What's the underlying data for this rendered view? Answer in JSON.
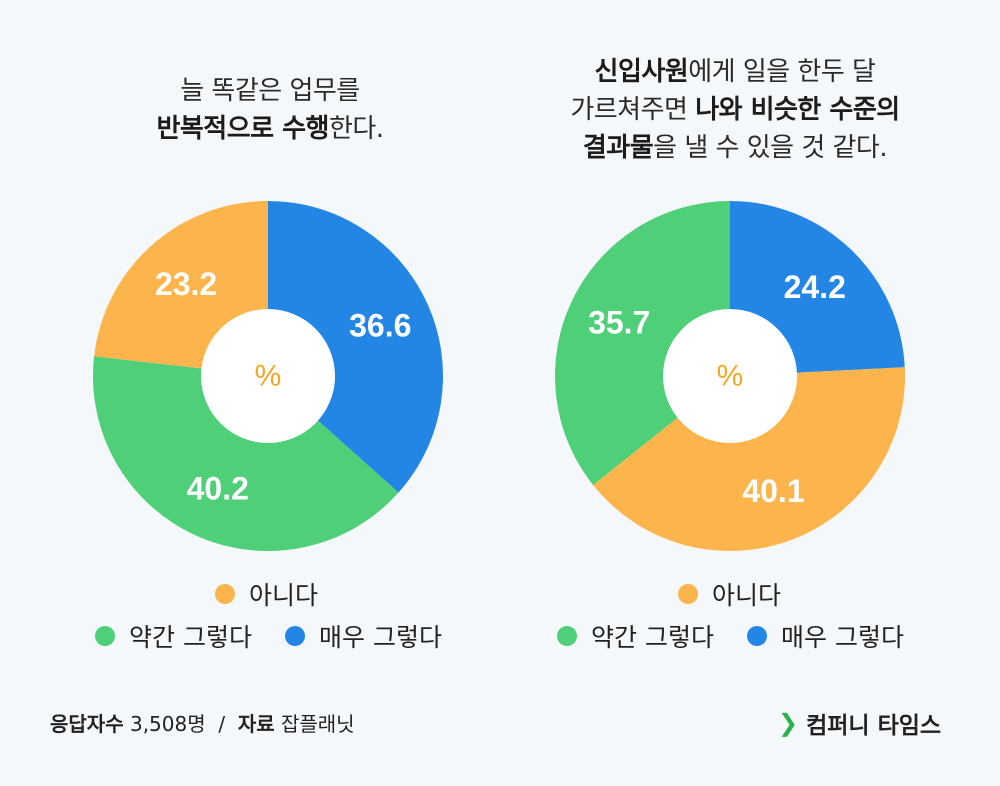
{
  "chart_data": [
    {
      "type": "donut",
      "title_parts": [
        {
          "text": "늘 똑같은 업무를",
          "bold": false,
          "break": true
        },
        {
          "text": "반복적으로 수행",
          "bold": true,
          "break": false
        },
        {
          "text": "한다.",
          "bold": false,
          "break": false
        }
      ],
      "center_label": "%",
      "slices": [
        {
          "name": "매우 그렇다",
          "value": 36.6,
          "color": "#2386e5"
        },
        {
          "name": "약간 그렇다",
          "value": 40.2,
          "color": "#4fcf78"
        },
        {
          "name": "아니다",
          "value": 23.2,
          "color": "#fcb54c"
        }
      ]
    },
    {
      "type": "donut",
      "title_parts": [
        {
          "text": "신입사원",
          "bold": true,
          "break": false
        },
        {
          "text": "에게 일을 한두 달",
          "bold": false,
          "break": true
        },
        {
          "text": "가르쳐주면 ",
          "bold": false,
          "break": false
        },
        {
          "text": "나와 비슷한 수준의",
          "bold": true,
          "break": true
        },
        {
          "text": "결과물",
          "bold": true,
          "break": false
        },
        {
          "text": "을 낼 수 있을 것 같다.",
          "bold": false,
          "break": false
        }
      ],
      "center_label": "%",
      "slices": [
        {
          "name": "매우 그렇다",
          "value": 24.2,
          "color": "#2386e5"
        },
        {
          "name": "아니다",
          "value": 40.1,
          "color": "#fcb54c"
        },
        {
          "name": "약간 그렇다",
          "value": 35.7,
          "color": "#4fcf78"
        }
      ]
    }
  ],
  "legend": {
    "items": [
      {
        "label": "아니다",
        "color": "#fcb54c"
      },
      {
        "label": "약간 그렇다",
        "color": "#4fcf78"
      },
      {
        "label": "매우 그렇다",
        "color": "#2386e5"
      }
    ]
  },
  "footer": {
    "respondents_label": "응답자수",
    "respondents_value": "3,508명",
    "separator": "/",
    "source_label": "자료",
    "source_value": "잡플래닛",
    "brand_chevron": "❯",
    "brand_name": "컴퍼니 타임스"
  }
}
